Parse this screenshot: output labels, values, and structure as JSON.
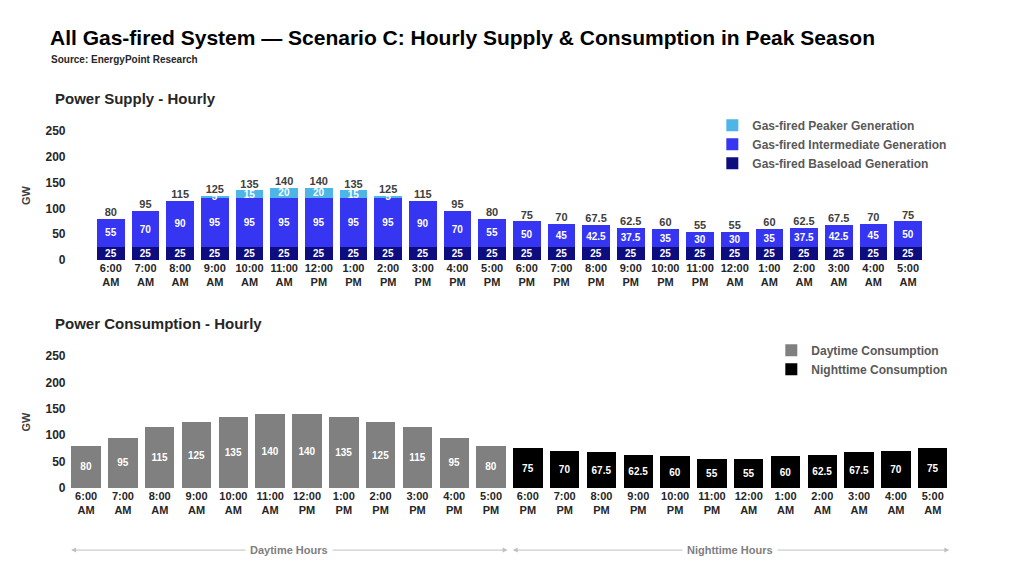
{
  "title": "All Gas-fired System — Scenario C: Hourly Supply & Consumption in Peak Season",
  "source": "Source: EnergyPoint Research",
  "chart_data": [
    {
      "type": "bar",
      "title": "Power Supply - Hourly",
      "ylabel": "GW",
      "categories": [
        "6:00 AM",
        "7:00 AM",
        "8:00 AM",
        "9:00 AM",
        "10:00 AM",
        "11:00 AM",
        "12:00 PM",
        "1:00 PM",
        "2:00 PM",
        "3:00 PM",
        "4:00 PM",
        "5:00 PM",
        "6:00 PM",
        "7:00 PM",
        "8:00 PM",
        "9:00 PM",
        "10:00 PM",
        "11:00 PM",
        "12:00 AM",
        "1:00 AM",
        "2:00 AM",
        "3:00 AM",
        "4:00 AM",
        "5:00 AM"
      ],
      "stacked": true,
      "data_labels": true,
      "legend": "top right",
      "grid": false,
      "ylim": [
        0,
        250
      ],
      "yticks": [
        0,
        50,
        100,
        150,
        200,
        250
      ],
      "series": [
        {
          "name": "Gas-fired Baseload Generation",
          "color": "#0d0d80",
          "values": [
            25,
            25,
            25,
            25,
            25,
            25,
            25,
            25,
            25,
            25,
            25,
            25,
            25,
            25,
            25,
            25,
            25,
            25,
            25,
            25,
            25,
            25,
            25,
            25
          ]
        },
        {
          "name": "Gas-fired Intermediate Generation",
          "color": "#3535f2",
          "values": [
            55,
            70,
            90,
            95,
            95,
            95,
            95,
            95,
            95,
            90,
            70,
            55,
            50,
            45,
            42.5,
            37.5,
            35,
            30,
            30,
            35,
            37.5,
            42.5,
            45,
            50
          ]
        },
        {
          "name": "Gas-fired Peaker Generation",
          "color": "#4db6e6",
          "values": [
            null,
            null,
            null,
            5,
            15,
            20,
            20,
            15,
            5,
            null,
            null,
            null,
            null,
            null,
            null,
            null,
            null,
            null,
            null,
            null,
            null,
            null,
            null,
            null
          ]
        }
      ],
      "totals": [
        80,
        95,
        115,
        125,
        135,
        140,
        140,
        135,
        125,
        115,
        95,
        80,
        75,
        70,
        67.5,
        62.5,
        60,
        55,
        55,
        60,
        62.5,
        67.5,
        70,
        75
      ]
    },
    {
      "type": "bar",
      "title": "Power Consumption - Hourly",
      "ylabel": "GW",
      "categories": [
        "6:00 AM",
        "7:00 AM",
        "8:00 AM",
        "9:00 AM",
        "10:00 AM",
        "11:00 AM",
        "12:00 PM",
        "1:00 PM",
        "2:00 PM",
        "3:00 PM",
        "4:00 PM",
        "5:00 PM",
        "6:00 PM",
        "7:00 PM",
        "8:00 PM",
        "9:00 PM",
        "10:00 PM",
        "11:00 PM",
        "12:00 AM",
        "1:00 AM",
        "2:00 AM",
        "3:00 AM",
        "4:00 AM",
        "5:00 AM"
      ],
      "data_labels": true,
      "legend": "top right",
      "grid": false,
      "ylim": [
        0,
        250
      ],
      "yticks": [
        0,
        50,
        100,
        150,
        200,
        250
      ],
      "series": [
        {
          "name": "Daytime Consumption",
          "color": "#808080",
          "values": [
            80,
            95,
            115,
            125,
            135,
            140,
            140,
            135,
            125,
            115,
            95,
            80,
            null,
            null,
            null,
            null,
            null,
            null,
            null,
            null,
            null,
            null,
            null,
            null
          ]
        },
        {
          "name": "Nighttime Consumption",
          "color": "#000000",
          "values": [
            null,
            null,
            null,
            null,
            null,
            null,
            null,
            null,
            null,
            null,
            null,
            null,
            75,
            70,
            67.5,
            62.5,
            60,
            55,
            55,
            60,
            62.5,
            67.5,
            70,
            75
          ]
        }
      ],
      "annotations": [
        {
          "text": "Daytime Hours",
          "from": "6:00 AM",
          "to": "5:00 PM"
        },
        {
          "text": "Nighttime Hours",
          "from": "6:00 PM",
          "to": "5:00 AM"
        }
      ]
    }
  ]
}
